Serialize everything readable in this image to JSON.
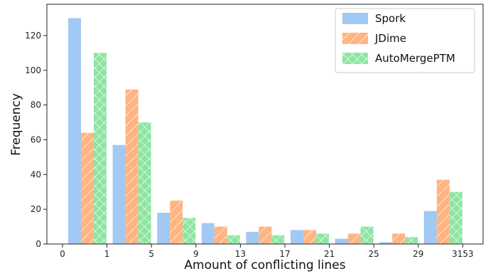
{
  "chart_data": {
    "type": "bar",
    "title": "",
    "xlabel": "Amount of conflicting lines",
    "ylabel": "Frequency",
    "ylim": [
      0,
      138
    ],
    "yticks": [
      0,
      20,
      40,
      60,
      80,
      100,
      120
    ],
    "xtick_labels": [
      "0",
      "1",
      "5",
      "9",
      "13",
      "17",
      "21",
      "25",
      "29",
      "3153"
    ],
    "grid": false,
    "legend_position": "top-right",
    "series": [
      {
        "name": "Spork",
        "color": "#a1c9f4",
        "hatch": "none",
        "values": [
          130,
          57,
          18,
          12,
          7,
          8,
          3,
          1,
          19
        ]
      },
      {
        "name": "JDime",
        "color": "#ffb482",
        "hatch": "diagonal",
        "values": [
          64,
          89,
          25,
          10,
          10,
          8,
          6,
          6,
          37
        ]
      },
      {
        "name": "AutoMergePTM",
        "color": "#8de5a1",
        "hatch": "cross",
        "values": [
          110,
          70,
          15,
          5,
          5,
          6,
          10,
          4,
          30
        ]
      }
    ]
  }
}
